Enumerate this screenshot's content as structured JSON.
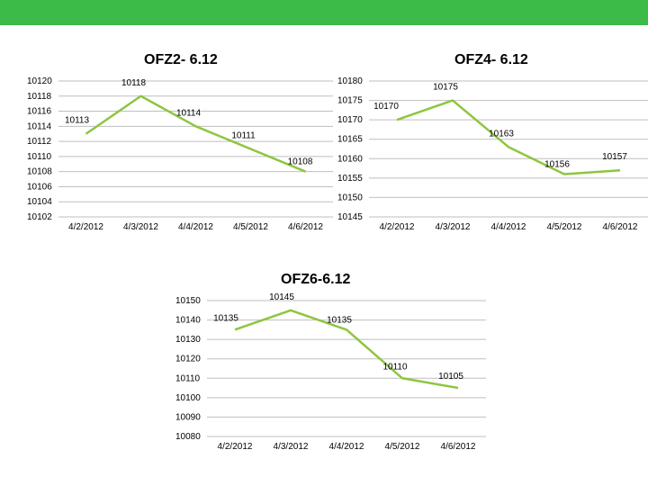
{
  "slide": {
    "accent_color": "#3dbb49"
  },
  "chart_data": [
    {
      "type": "line",
      "title": "OFZ2- 6.12",
      "categories": [
        "4/2/2012",
        "4/3/2012",
        "4/4/2012",
        "4/5/2012",
        "4/6/2012"
      ],
      "values": [
        10113,
        10118,
        10114,
        10111,
        10108
      ],
      "ylim": [
        10102,
        10120
      ],
      "yticks": [
        10102,
        10104,
        10106,
        10108,
        10110,
        10112,
        10114,
        10116,
        10118,
        10120
      ],
      "line_color": "#8dc63f",
      "grid": true
    },
    {
      "type": "line",
      "title": "OFZ4- 6.12",
      "categories": [
        "4/2/2012",
        "4/3/2012",
        "4/4/2012",
        "4/5/2012",
        "4/6/2012"
      ],
      "values": [
        10170,
        10175,
        10163,
        10156,
        10157
      ],
      "ylim": [
        10145,
        10180
      ],
      "yticks": [
        10145,
        10150,
        10155,
        10160,
        10165,
        10170,
        10175,
        10180
      ],
      "line_color": "#8dc63f",
      "grid": true
    },
    {
      "type": "line",
      "title": "OFZ6-6.12",
      "categories": [
        "4/2/2012",
        "4/3/2012",
        "4/4/2012",
        "4/5/2012",
        "4/6/2012"
      ],
      "values": [
        10135,
        10145,
        10135,
        10110,
        10105
      ],
      "ylim": [
        10080,
        10150
      ],
      "yticks": [
        10080,
        10090,
        10100,
        10110,
        10120,
        10130,
        10140,
        10150
      ],
      "line_color": "#8dc63f",
      "grid": true
    }
  ]
}
